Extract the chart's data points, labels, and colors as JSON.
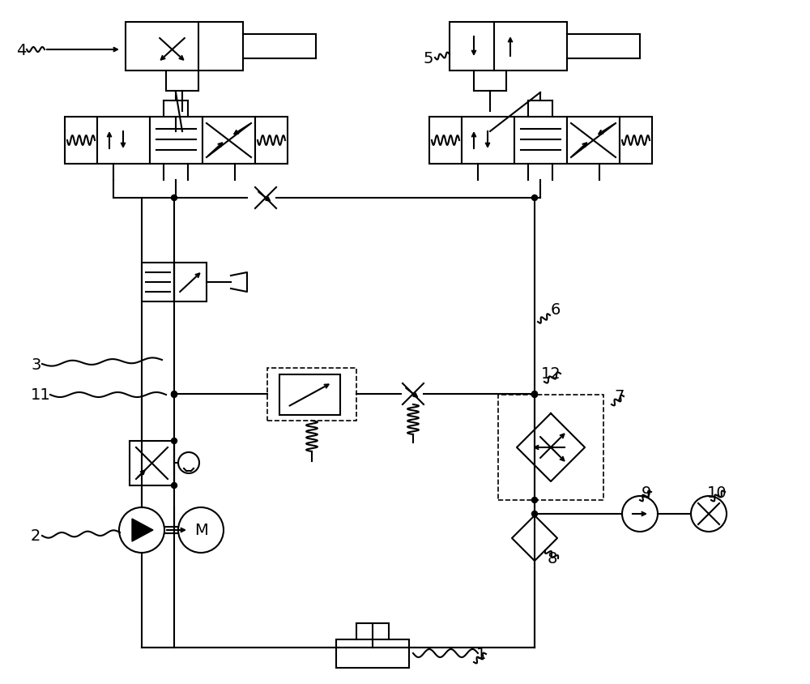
{
  "bg_color": "#ffffff",
  "line_color": "#000000",
  "lw": 1.5,
  "lw_thin": 1.0,
  "purple": "#800080",
  "blue": "#0000cc"
}
